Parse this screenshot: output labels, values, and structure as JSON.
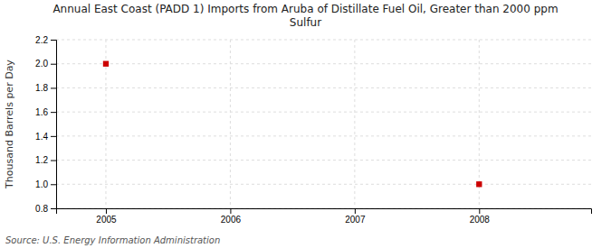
{
  "chart_data": {
    "type": "scatter",
    "title": "Annual East Coast (PADD 1) Imports from Aruba of Distillate Fuel Oil, Greater than 2000 ppm\nSulfur",
    "ylabel": "Thousand Barrels per Day",
    "source": "Source: U.S. Energy Information Administration",
    "x": [
      2005,
      2008
    ],
    "values": [
      2.0,
      1.0
    ],
    "color": "#cc0000",
    "marker": "square",
    "xlim": [
      2004.6,
      2008.9
    ],
    "ylim": [
      0.8,
      2.2
    ],
    "xticks": [
      2005,
      2006,
      2007,
      2008
    ],
    "yticks": [
      0.8,
      {
        "value": 1.0,
        "label": "1.0"
      },
      1.2,
      1.4,
      1.6,
      1.8,
      {
        "value": 2.0,
        "label": "2.0"
      },
      2.2
    ],
    "grid": true
  }
}
